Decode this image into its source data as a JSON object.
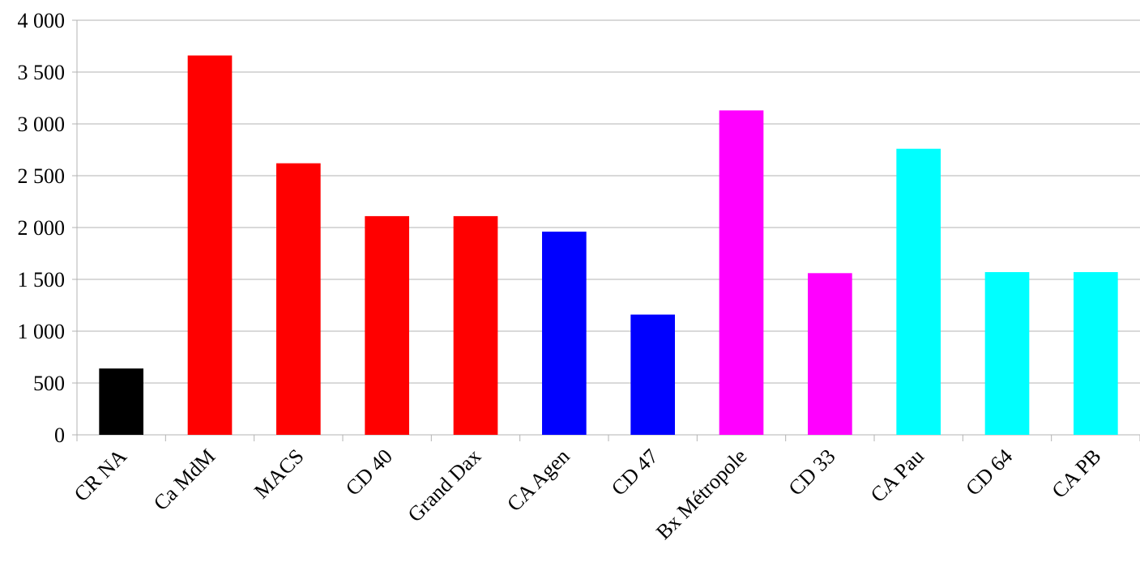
{
  "chart_data": {
    "type": "bar",
    "title": "",
    "xlabel": "",
    "ylabel": "",
    "ylim": [
      0,
      4000
    ],
    "y_ticks": [
      0,
      500,
      1000,
      1500,
      2000,
      2500,
      3000,
      3500,
      4000
    ],
    "y_tick_labels": [
      "0",
      "500",
      "1 000",
      "1 500",
      "2 000",
      "2 500",
      "3 000",
      "3 500",
      "4 000"
    ],
    "grid": true,
    "legend": "none",
    "categories": [
      "CR NA",
      "Ca MdM",
      "MACS",
      "CD 40",
      "Grand Dax",
      "CA Agen",
      "CD 47",
      "Bx Métropole",
      "CD 33",
      "CA Pau",
      "CD 64",
      "CA PB"
    ],
    "values": [
      640,
      3660,
      2620,
      2110,
      2110,
      1960,
      1160,
      3130,
      1560,
      2760,
      1570,
      1570
    ],
    "colors": [
      "#000000",
      "#ff0000",
      "#ff0000",
      "#ff0000",
      "#ff0000",
      "#0000ff",
      "#0000ff",
      "#ff00ff",
      "#ff00ff",
      "#00ffff",
      "#00ffff",
      "#00ffff"
    ]
  }
}
